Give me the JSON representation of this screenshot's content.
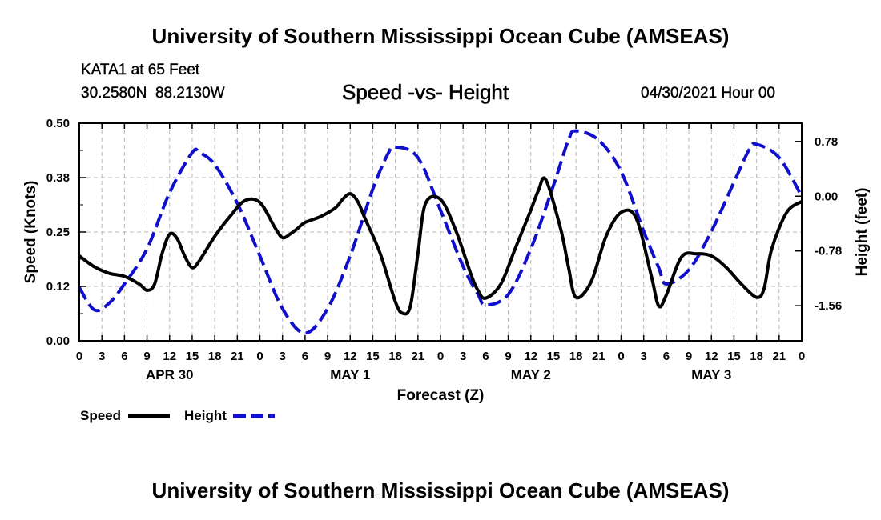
{
  "header": {
    "title": "University of Southern Mississippi Ocean Cube (AMSEAS)",
    "station_name": "KATA1 at 65 Feet",
    "latitude": "30.2580N",
    "longitude": "88.2130W",
    "run_time": "04/30/2021 Hour 00"
  },
  "footer": {
    "title": "University of Southern Mississippi Ocean Cube (AMSEAS)"
  },
  "chart_data": {
    "type": "line",
    "title": "Speed -vs- Height",
    "xlabel": "Forecast (Z)",
    "ylabel": "Speed (Knots)",
    "y2label": "Height (feet)",
    "xlim": [
      0,
      96
    ],
    "ylim": [
      0,
      0.5
    ],
    "y2lim": [
      -2.06,
      1.04
    ],
    "yticks": [
      0.0,
      0.125,
      0.25,
      0.375,
      0.5
    ],
    "yticklabels": [
      "0.00",
      "0.12",
      "0.25",
      "0.38",
      "0.50"
    ],
    "y2ticks": [
      -1.56,
      -0.78,
      0.0,
      0.78
    ],
    "y2ticklabels": [
      "-1.56",
      "-0.78",
      "0.00",
      "0.78"
    ],
    "xticks": [
      0,
      3,
      6,
      9,
      12,
      15,
      18,
      21,
      24,
      27,
      30,
      33,
      36,
      39,
      42,
      45,
      48,
      51,
      54,
      57,
      60,
      63,
      66,
      69,
      72,
      75,
      78,
      81,
      84,
      87,
      90,
      93,
      96
    ],
    "xticklabels": [
      "0",
      "3",
      "6",
      "9",
      "12",
      "15",
      "18",
      "21",
      "0",
      "3",
      "6",
      "9",
      "12",
      "15",
      "18",
      "21",
      "0",
      "3",
      "6",
      "9",
      "12",
      "15",
      "18",
      "21",
      "0",
      "3",
      "6",
      "9",
      "12",
      "15",
      "18",
      "21",
      "0"
    ],
    "day_labels": [
      {
        "x": 12,
        "label": "APR 30"
      },
      {
        "x": 36,
        "label": "MAY 1"
      },
      {
        "x": 60,
        "label": "MAY 2"
      },
      {
        "x": 84,
        "label": "MAY 3"
      }
    ],
    "grid": true,
    "series": [
      {
        "name": "Speed",
        "axis": "left",
        "color": "#000000",
        "style": "solid",
        "x": [
          0,
          2,
          4,
          6,
          8,
          9,
          10,
          11,
          12,
          13,
          14,
          15,
          16,
          18,
          20,
          22,
          24,
          26,
          27,
          28,
          29,
          30,
          32,
          34,
          35,
          36,
          37,
          38,
          40,
          42,
          43,
          44,
          45,
          46,
          48,
          50,
          52,
          53,
          54,
          56,
          58,
          60,
          61,
          62,
          64,
          65,
          66,
          68,
          70,
          72,
          74,
          76,
          77,
          78,
          80,
          82,
          84,
          86,
          88,
          90,
          91,
          92,
          94,
          96
        ],
        "y": [
          0.195,
          0.17,
          0.155,
          0.148,
          0.13,
          0.116,
          0.13,
          0.2,
          0.245,
          0.235,
          0.195,
          0.168,
          0.185,
          0.24,
          0.285,
          0.322,
          0.318,
          0.26,
          0.237,
          0.245,
          0.258,
          0.272,
          0.285,
          0.305,
          0.325,
          0.338,
          0.32,
          0.28,
          0.2,
          0.09,
          0.063,
          0.08,
          0.2,
          0.315,
          0.325,
          0.255,
          0.155,
          0.115,
          0.098,
          0.13,
          0.215,
          0.3,
          0.345,
          0.37,
          0.255,
          0.17,
          0.1,
          0.135,
          0.24,
          0.295,
          0.282,
          0.15,
          0.08,
          0.105,
          0.192,
          0.2,
          0.195,
          0.168,
          0.13,
          0.1,
          0.12,
          0.21,
          0.295,
          0.32
        ]
      },
      {
        "name": "Height",
        "axis": "right",
        "color": "#1010cc",
        "style": "dashed",
        "x": [
          0,
          2,
          4,
          6,
          9,
          12,
          15,
          16,
          18,
          21,
          24,
          27,
          30,
          33,
          36,
          39,
          41,
          42,
          45,
          48,
          51,
          53,
          54,
          57,
          60,
          63,
          65,
          66,
          69,
          72,
          75,
          77,
          78,
          81,
          84,
          87,
          89,
          90,
          93,
          96
        ],
        "y": [
          -1.3,
          -1.62,
          -1.52,
          -1.25,
          -0.75,
          0.05,
          0.62,
          0.62,
          0.45,
          -0.1,
          -0.85,
          -1.6,
          -1.95,
          -1.6,
          -0.85,
          0.1,
          0.6,
          0.7,
          0.55,
          -0.2,
          -1.0,
          -1.4,
          -1.55,
          -1.4,
          -0.75,
          0.15,
          0.8,
          0.93,
          0.8,
          0.35,
          -0.5,
          -1.02,
          -1.25,
          -1.05,
          -0.5,
          0.2,
          0.66,
          0.74,
          0.55,
          0.0
        ]
      }
    ]
  },
  "legend": {
    "speed_label": "Speed",
    "height_label": "Height"
  }
}
